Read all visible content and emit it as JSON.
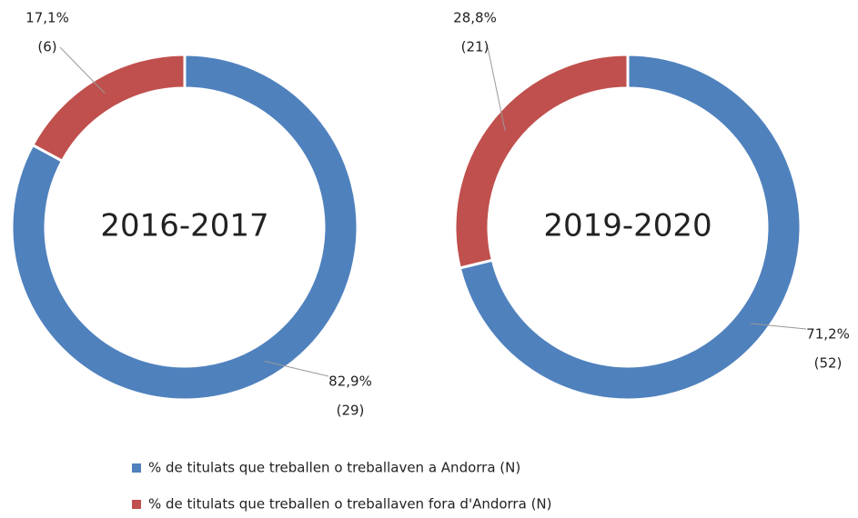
{
  "chart_data": [
    {
      "type": "donut",
      "title": "2016-2017",
      "series": [
        {
          "name": "% de titulats que treballen o treballaven a Andorra (N)",
          "color": "#4f81bd"
        },
        {
          "name": "% de titulats que treballen o treballaven fora d'Andorra (N)",
          "color": "#c0504d"
        }
      ],
      "values": [
        82.9,
        17.1
      ],
      "value_labels": [
        "82,9%",
        "17,1%"
      ],
      "counts": [
        29,
        6
      ],
      "count_labels": [
        "(29)",
        "(6)"
      ]
    },
    {
      "type": "donut",
      "title": "2019-2020",
      "values": [
        71.2,
        28.8
      ],
      "value_labels": [
        "71,2%",
        "28,8%"
      ],
      "counts": [
        52,
        21
      ],
      "count_labels": [
        "(52)",
        "(21)"
      ]
    }
  ]
}
